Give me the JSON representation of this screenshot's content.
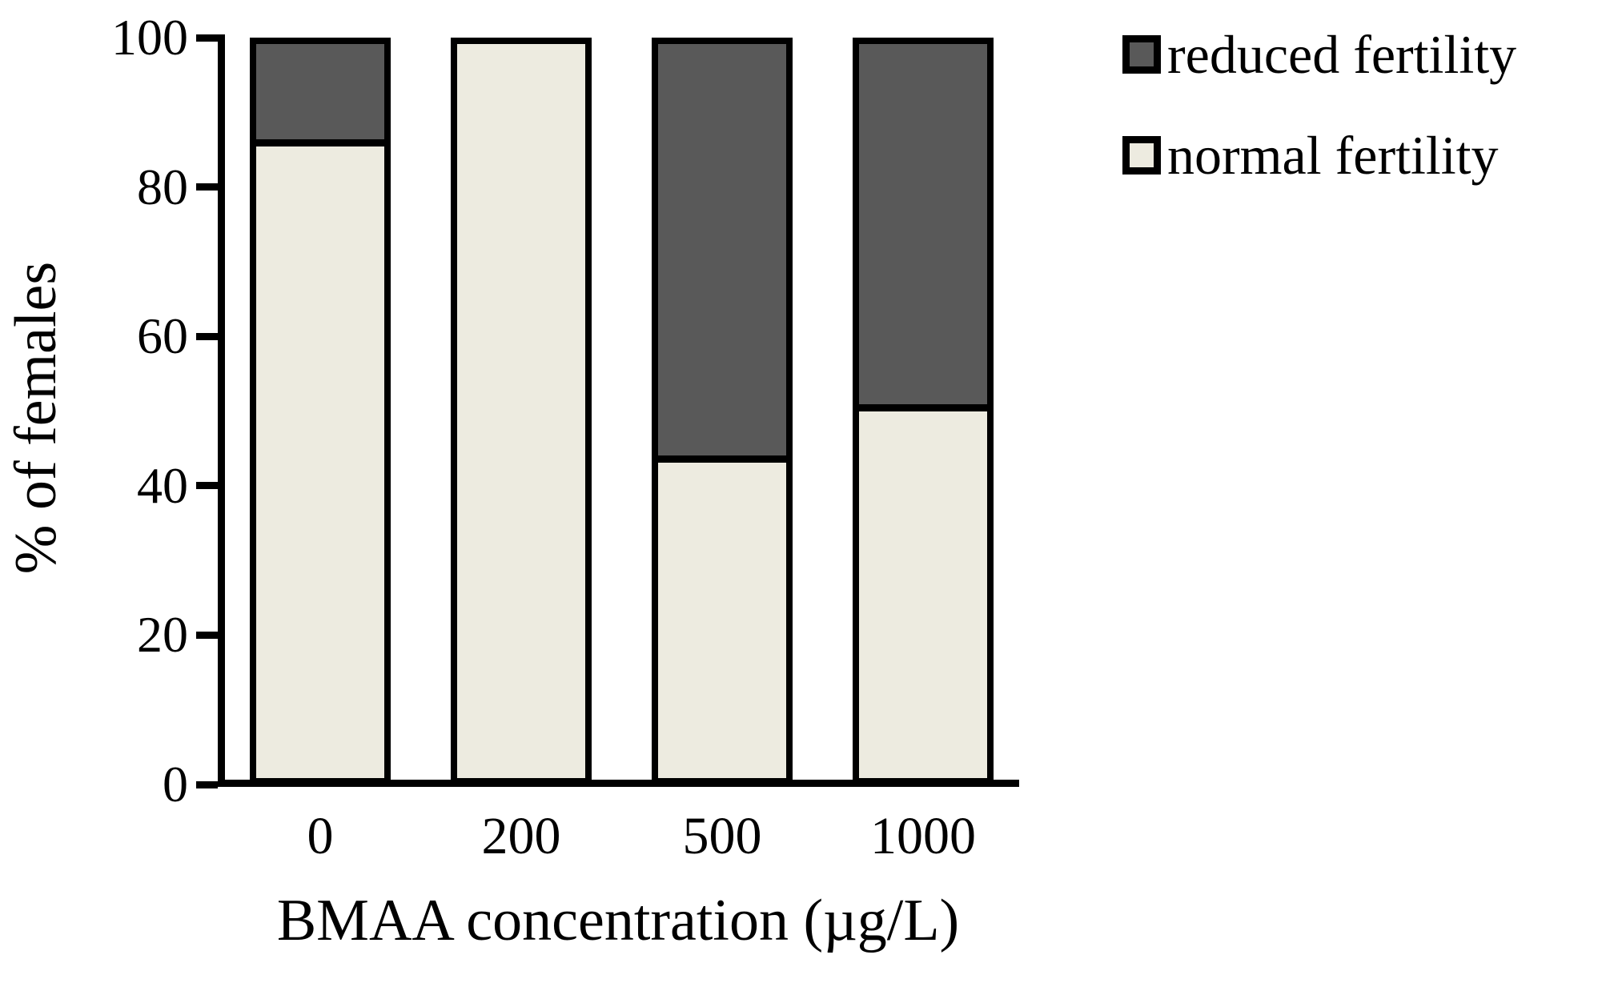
{
  "chart_data": {
    "type": "bar",
    "stacked": true,
    "title": "",
    "xlabel": "BMAA concentration (µg/L)",
    "ylabel": "% of females",
    "categories": [
      "0",
      "200",
      "500",
      "1000"
    ],
    "series": [
      {
        "name": "normal fertility",
        "color": "#EDEBE0",
        "values": [
          86,
          100,
          43,
          50
        ]
      },
      {
        "name": "reduced fertility",
        "color": "#595959",
        "values": [
          14,
          0,
          57,
          50
        ]
      }
    ],
    "ylim": [
      0,
      100
    ],
    "yticks": [
      0,
      20,
      40,
      60,
      80,
      100
    ],
    "grid": false,
    "legend_position": "top-right",
    "bar_border_color": "#000000",
    "axis_color": "#000000",
    "background_color": "#FFFFFF"
  },
  "legend": {
    "items": [
      {
        "label": "reduced fertility",
        "swatch": "#595959"
      },
      {
        "label": "normal fertility",
        "swatch": "#EDEBE0"
      }
    ]
  }
}
